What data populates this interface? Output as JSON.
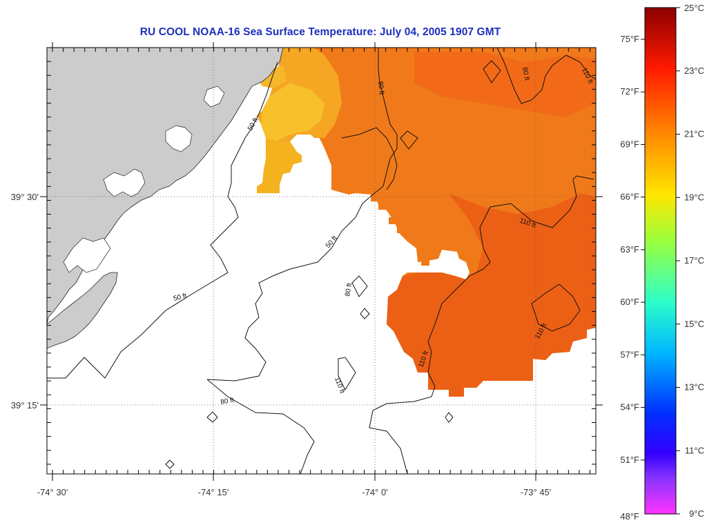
{
  "title": "RU COOL  NOAA-16  Sea Surface Temperature:  July 04, 2005 1907 GMT",
  "axes": {
    "x_ticks": [
      "-74° 30'",
      "-74° 15'",
      "-74° 0'",
      "-73° 45'"
    ],
    "y_ticks": [
      "39° 30'",
      "39° 15'"
    ]
  },
  "contours": [
    "50 ft",
    "80 ft",
    "110 ft"
  ],
  "colorbar": {
    "fahrenheit": [
      "75°F",
      "72°F",
      "69°F",
      "66°F",
      "63°F",
      "60°F",
      "57°F",
      "54°F",
      "51°F",
      "48°F"
    ],
    "celsius": [
      "25°C",
      "23°C",
      "21°C",
      "19°C",
      "17°C",
      "15°C",
      "13°C",
      "11°C",
      "9°C"
    ],
    "colors": [
      "#9c0000",
      "#ff1a00",
      "#ff8800",
      "#ffe000",
      "#a8ff3c",
      "#3dffb0",
      "#00d8ff",
      "#008cff",
      "#0000ff",
      "#9933ff",
      "#ff33ff"
    ]
  },
  "land_color": "#cccccc"
}
